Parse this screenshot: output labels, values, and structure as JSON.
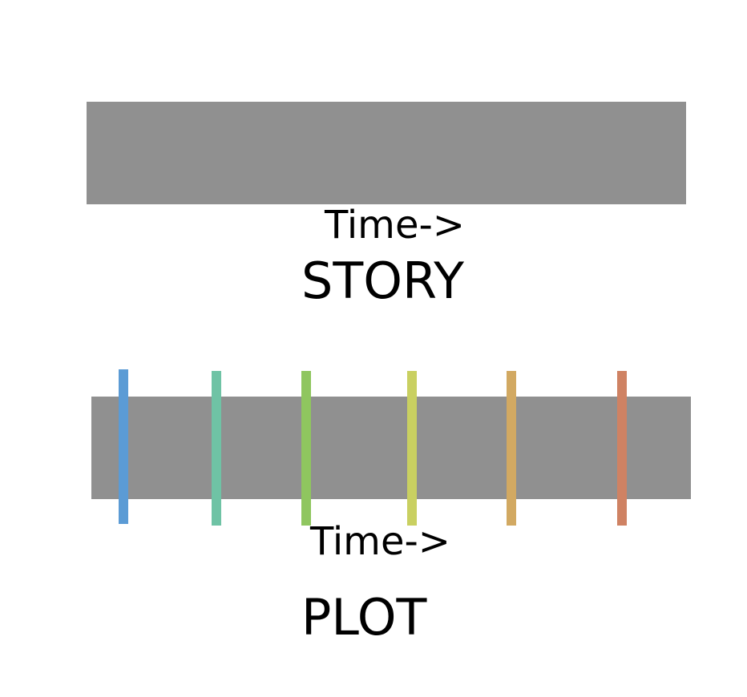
{
  "story": {
    "time_label": "Time->",
    "title": "STORY",
    "bar_color": "#909090"
  },
  "plot": {
    "time_label": "Time->",
    "title": "PLOT",
    "bar_color": "#909090",
    "event_markers": [
      {
        "color": "#5b9bd5"
      },
      {
        "color": "#6fc3a5"
      },
      {
        "color": "#8fc65f"
      },
      {
        "color": "#c9d061"
      },
      {
        "color": "#d2a962"
      },
      {
        "color": "#cf8263"
      }
    ]
  }
}
